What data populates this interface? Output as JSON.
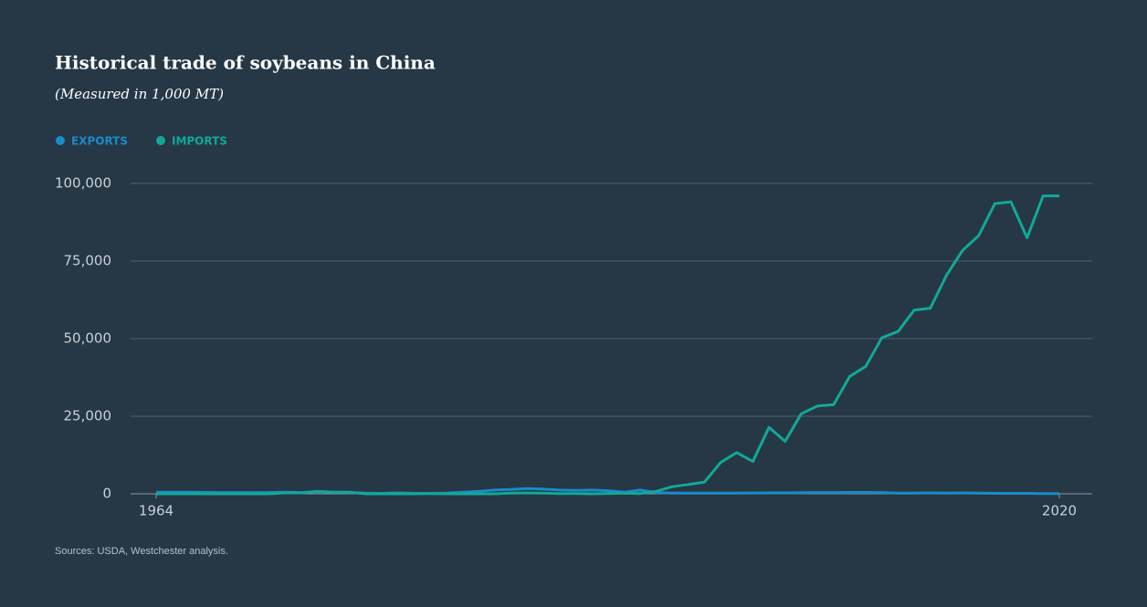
{
  "chart_data": {
    "type": "line",
    "title": "Historical trade of soybeans in China",
    "subtitle": "(Measured in 1,000 MT)",
    "source": "Sources: USDA, Westchester analysis.",
    "x": [
      1964,
      1965,
      1966,
      1967,
      1968,
      1969,
      1970,
      1971,
      1972,
      1973,
      1974,
      1975,
      1976,
      1977,
      1978,
      1979,
      1980,
      1981,
      1982,
      1983,
      1984,
      1985,
      1986,
      1987,
      1988,
      1989,
      1990,
      1991,
      1992,
      1993,
      1994,
      1995,
      1996,
      1997,
      1998,
      1999,
      2000,
      2001,
      2002,
      2003,
      2004,
      2005,
      2006,
      2007,
      2008,
      2009,
      2010,
      2011,
      2012,
      2013,
      2014,
      2015,
      2016,
      2017,
      2018,
      2019,
      2020
    ],
    "series": [
      {
        "name": "EXPORTS",
        "color": "#1a8cc8",
        "values": [
          500,
          500,
          500,
          450,
          400,
          400,
          350,
          400,
          500,
          400,
          700,
          500,
          400,
          200,
          150,
          300,
          150,
          150,
          200,
          500,
          800,
          1200,
          1400,
          1700,
          1500,
          1200,
          1100,
          1200,
          1000,
          500,
          1200,
          400,
          200,
          200,
          200,
          200,
          200,
          250,
          300,
          300,
          350,
          400,
          400,
          450,
          450,
          400,
          200,
          200,
          300,
          200,
          300,
          200,
          150,
          150,
          150,
          100,
          100
        ]
      },
      {
        "name": "IMPORTS",
        "color": "#12a898",
        "values": [
          0,
          0,
          0,
          0,
          0,
          0,
          0,
          0,
          300,
          300,
          800,
          500,
          500,
          0,
          0,
          0,
          0,
          100,
          0,
          0,
          0,
          0,
          200,
          300,
          200,
          100,
          100,
          0,
          100,
          200,
          100,
          800,
          2300,
          3000,
          3800,
          10100,
          13300,
          10400,
          21400,
          16900,
          25800,
          28300,
          28700,
          37800,
          41100,
          50300,
          52300,
          59200,
          59800,
          70400,
          78400,
          83200,
          93500,
          94100,
          82500,
          96000,
          96000
        ]
      }
    ],
    "xlim": [
      1964,
      2020
    ],
    "xticks": [
      1964,
      2020
    ],
    "ylim": [
      0,
      100000
    ],
    "yticks": [
      {
        "value": 0,
        "label": "0"
      },
      {
        "value": 25000,
        "label": "25,000"
      },
      {
        "value": 50000,
        "label": "50,000"
      },
      {
        "value": 75000,
        "label": "75,000"
      },
      {
        "value": 100000,
        "label": "100,000"
      }
    ],
    "grid": true
  }
}
